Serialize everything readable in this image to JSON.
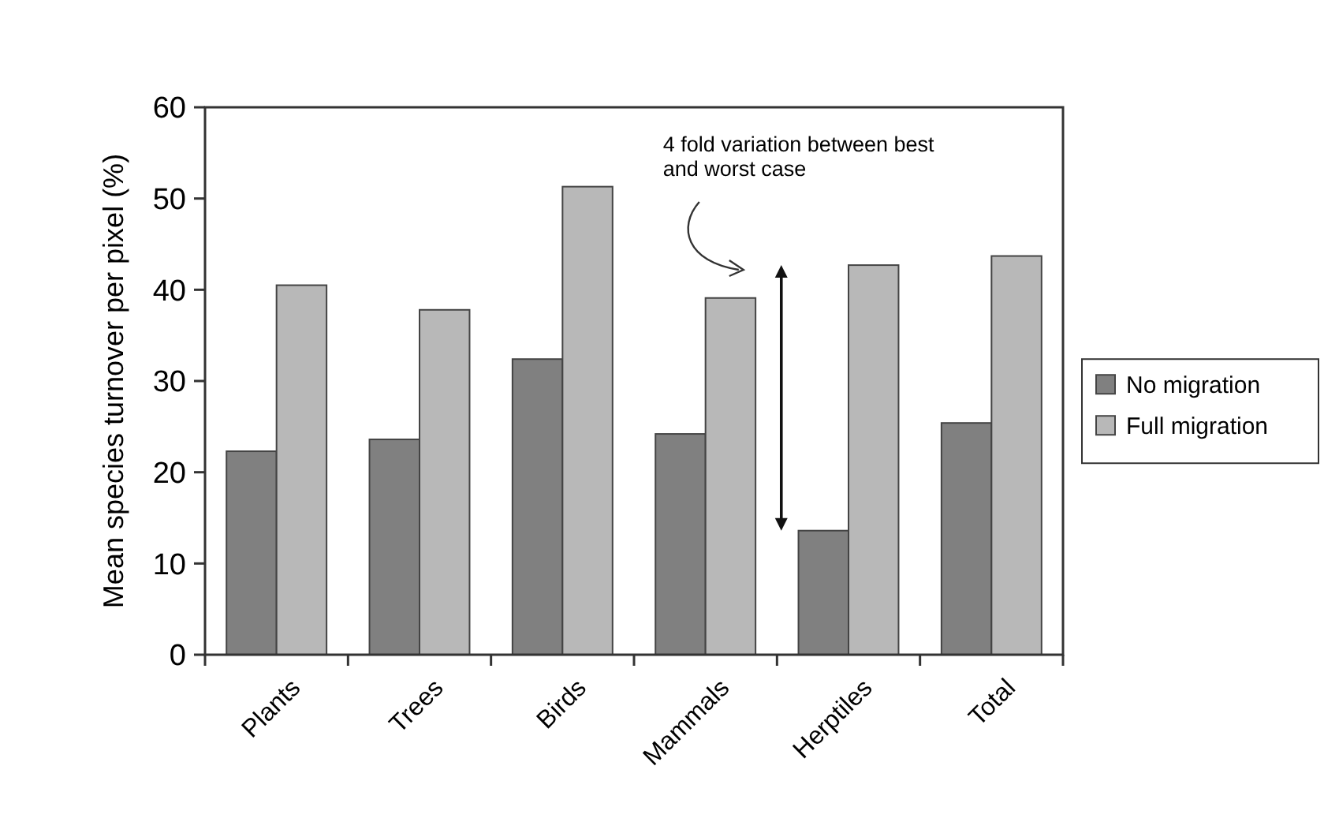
{
  "chart_data": {
    "type": "bar",
    "ylabel": "Mean species turnover per pixel (%)",
    "categories": [
      "Plants",
      "Trees",
      "Birds",
      "Mammals",
      "Herptiles",
      "Total"
    ],
    "series": [
      {
        "name": "No migration",
        "color": "#808080",
        "values": [
          22.3,
          23.6,
          32.4,
          24.2,
          13.6,
          25.4
        ]
      },
      {
        "name": "Full migration",
        "color": "#b8b8b8",
        "values": [
          40.5,
          37.8,
          51.3,
          39.1,
          42.7,
          43.7
        ]
      }
    ],
    "ylim": [
      0,
      60
    ],
    "yticks": [
      0,
      10,
      20,
      30,
      40,
      50,
      60
    ],
    "grid": false,
    "legend": "right",
    "annotations": [
      "4 fold variation between best and worst case"
    ]
  }
}
